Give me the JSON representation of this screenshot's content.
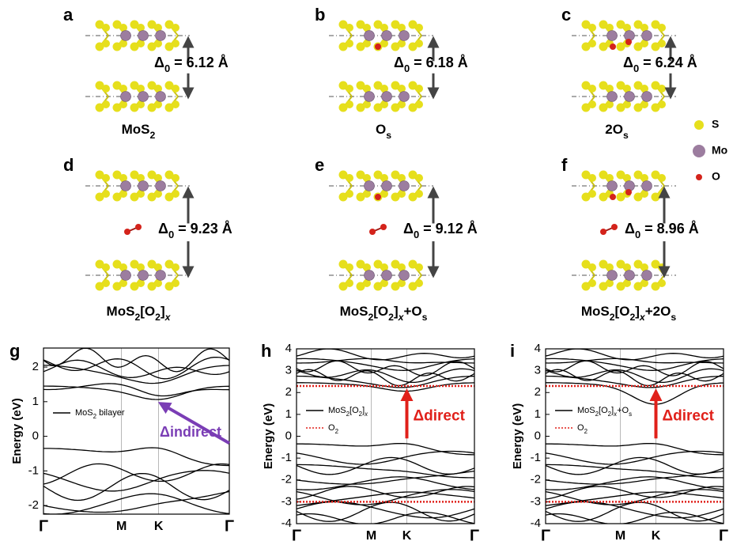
{
  "panels": [
    {
      "letter": "a",
      "delta": [
        {
          "text": "Δ"
        },
        {
          "sub": "0"
        },
        {
          "text": " = 6.12 Å"
        }
      ],
      "name": [
        {
          "text": "MoS"
        },
        {
          "sub": "2"
        }
      ]
    },
    {
      "letter": "b",
      "delta": [
        {
          "text": "Δ"
        },
        {
          "sub": "0"
        },
        {
          "text": " = 6.18 Å"
        }
      ],
      "name": [
        {
          "text": "O"
        },
        {
          "sub": "s"
        }
      ]
    },
    {
      "letter": "c",
      "delta": [
        {
          "text": "Δ"
        },
        {
          "sub": "0"
        },
        {
          "text": " = 6.24 Å"
        }
      ],
      "name": [
        {
          "text": "2O"
        },
        {
          "sub": "s"
        }
      ]
    },
    {
      "letter": "d",
      "delta": [
        {
          "text": "Δ"
        },
        {
          "sub": "0"
        },
        {
          "text": " = 9.23 Å"
        }
      ],
      "name": [
        {
          "text": "MoS"
        },
        {
          "sub": "2"
        },
        {
          "text": "[O"
        },
        {
          "sub": "2"
        },
        {
          "text": "]"
        },
        {
          "italicsub": "x"
        }
      ]
    },
    {
      "letter": "e",
      "delta": [
        {
          "text": "Δ"
        },
        {
          "sub": "0"
        },
        {
          "text": " = 9.12 Å"
        }
      ],
      "name": [
        {
          "text": "MoS"
        },
        {
          "sub": "2"
        },
        {
          "text": "[O"
        },
        {
          "sub": "2"
        },
        {
          "text": "]"
        },
        {
          "italicsub": "x"
        },
        {
          "text": "+O"
        },
        {
          "sub": "s"
        }
      ]
    },
    {
      "letter": "f",
      "delta": [
        {
          "text": "Δ"
        },
        {
          "sub": "0"
        },
        {
          "text": " = 8.96 Å"
        }
      ],
      "name": [
        {
          "text": "MoS"
        },
        {
          "sub": "2"
        },
        {
          "text": "[O"
        },
        {
          "sub": "2"
        },
        {
          "text": "]"
        },
        {
          "italicsub": "x"
        },
        {
          "text": "+2O"
        },
        {
          "sub": "s"
        }
      ]
    }
  ],
  "legend": [
    {
      "label": "S",
      "color": "#e6df1c"
    },
    {
      "label": "Mo",
      "color": "#9c7d9f"
    },
    {
      "label": "O",
      "color": "#d4231b"
    }
  ],
  "band_plots": [
    {
      "letter": "g",
      "ylabel": "Energy (eV)",
      "ylim": [
        -2.25,
        2.55
      ],
      "yticks": [
        -2,
        -1,
        0,
        1,
        2
      ],
      "xticks": [
        "Γ",
        "M",
        "K",
        "Γ"
      ],
      "legend": [
        {
          "label": [
            {
              "text": "MoS"
            },
            {
              "sub": "2"
            },
            {
              "text": " bilayer"
            }
          ],
          "color": "#000000",
          "style": "solid"
        }
      ],
      "annotation": "Δindirect",
      "annotation_color": "#7a3db5"
    },
    {
      "letter": "h",
      "ylabel": "Energy (eV)",
      "ylim": [
        -4,
        4
      ],
      "yticks": [
        -4,
        -3,
        -2,
        -1,
        0,
        1,
        2,
        3,
        4
      ],
      "xticks": [
        "Γ",
        "M",
        "K",
        "Γ"
      ],
      "legend": [
        {
          "label": [
            {
              "text": "MoS"
            },
            {
              "sub": "2"
            },
            {
              "text": "[O"
            },
            {
              "sub": "2"
            },
            {
              "text": "]"
            },
            {
              "italicsub": "x"
            }
          ],
          "color": "#000000",
          "style": "solid"
        },
        {
          "label": [
            {
              "text": "O"
            },
            {
              "sub": "2"
            }
          ],
          "color": "#e0201a",
          "style": "dotted"
        }
      ],
      "annotation": "Δdirect",
      "annotation_color": "#e0201a"
    },
    {
      "letter": "i",
      "ylabel": "Energy (eV)",
      "ylim": [
        -4,
        4
      ],
      "yticks": [
        -4,
        -3,
        -2,
        -1,
        0,
        1,
        2,
        3,
        4
      ],
      "xticks": [
        "Γ",
        "M",
        "K",
        "Γ"
      ],
      "legend": [
        {
          "label": [
            {
              "text": "MoS"
            },
            {
              "sub": "2"
            },
            {
              "text": "[O"
            },
            {
              "sub": "2"
            },
            {
              "text": "]"
            },
            {
              "italicsub": "x"
            },
            {
              "text": "+O"
            },
            {
              "sub": "s"
            }
          ],
          "color": "#000000",
          "style": "solid"
        },
        {
          "label": [
            {
              "text": "O"
            },
            {
              "sub": "2"
            }
          ],
          "color": "#e0201a",
          "style": "dotted"
        }
      ],
      "annotation": "Δdirect",
      "annotation_color": "#e0201a"
    }
  ]
}
